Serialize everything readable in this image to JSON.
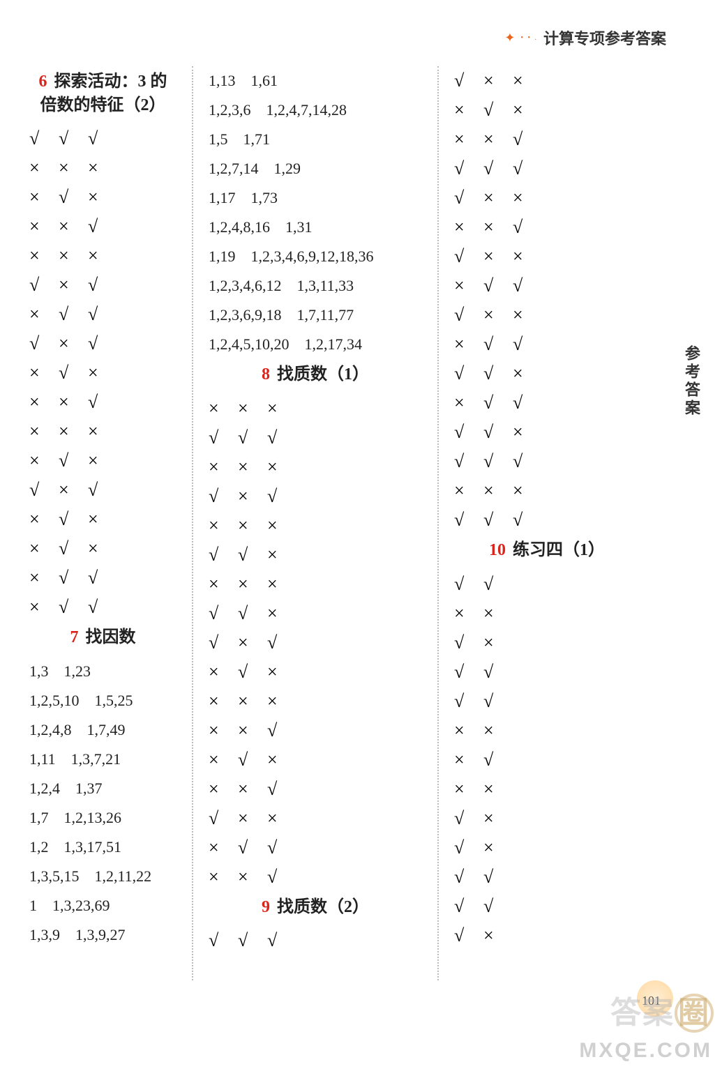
{
  "header": {
    "title": "计算专项参考答案"
  },
  "side_label": "参考答案",
  "page_number": "101",
  "watermark_cn": "答案",
  "watermark_circle": "圈",
  "watermark_en": "MXQE.COM",
  "check_char": "√",
  "cross_char": "×",
  "col1": {
    "s6": {
      "num": "6",
      "title_l1": "探索活动：3 的",
      "title_l2": "倍数的特征（2）"
    },
    "s6_marks": [
      [
        "c",
        "c",
        "c"
      ],
      [
        "x",
        "x",
        "x"
      ],
      [
        "x",
        "c",
        "x"
      ],
      [
        "x",
        "x",
        "c"
      ],
      [
        "x",
        "x",
        "x"
      ],
      [
        "c",
        "x",
        "c"
      ],
      [
        "x",
        "c",
        "c"
      ],
      [
        "c",
        "x",
        "c"
      ],
      [
        "x",
        "c",
        "x"
      ],
      [
        "x",
        "x",
        "c"
      ],
      [
        "x",
        "x",
        "x"
      ],
      [
        "x",
        "c",
        "x"
      ],
      [
        "c",
        "x",
        "c"
      ],
      [
        "x",
        "c",
        "x"
      ],
      [
        "x",
        "c",
        "x"
      ],
      [
        "x",
        "c",
        "c"
      ],
      [
        "x",
        "c",
        "c"
      ]
    ],
    "s7": {
      "num": "7",
      "title": "找因数"
    },
    "s7_rows": [
      "1,3　1,23",
      "1,2,5,10　1,5,25",
      "1,2,4,8　1,7,49",
      "1,11　1,3,7,21",
      "1,2,4　1,37",
      "1,7　1,2,13,26",
      "1,2　1,3,17,51",
      "1,3,5,15　1,2,11,22",
      "1　1,3,23,69",
      "1,3,9　1,3,9,27"
    ]
  },
  "col2": {
    "top_rows": [
      "1,13　1,61",
      "1,2,3,6　1,2,4,7,14,28",
      "1,5　1,71",
      "1,2,7,14　1,29",
      "1,17　1,73",
      "1,2,4,8,16　1,31",
      "1,19　1,2,3,4,6,9,12,18,36",
      "1,2,3,4,6,12　1,3,11,33",
      "1,2,3,6,9,18　1,7,11,77",
      "1,2,4,5,10,20　1,2,17,34"
    ],
    "s8": {
      "num": "8",
      "title": "找质数（1）"
    },
    "s8_marks": [
      [
        "x",
        "x",
        "x"
      ],
      [
        "c",
        "c",
        "c"
      ],
      [
        "x",
        "x",
        "x"
      ],
      [
        "c",
        "x",
        "c"
      ],
      [
        "x",
        "x",
        "x"
      ],
      [
        "c",
        "c",
        "x"
      ],
      [
        "x",
        "x",
        "x"
      ],
      [
        "c",
        "c",
        "x"
      ],
      [
        "c",
        "x",
        "c"
      ],
      [
        "x",
        "c",
        "x"
      ],
      [
        "x",
        "x",
        "x"
      ],
      [
        "x",
        "x",
        "c"
      ],
      [
        "x",
        "c",
        "x"
      ],
      [
        "x",
        "x",
        "c"
      ],
      [
        "c",
        "x",
        "x"
      ],
      [
        "x",
        "c",
        "c"
      ],
      [
        "x",
        "x",
        "c"
      ]
    ],
    "s9": {
      "num": "9",
      "title": "找质数（2）"
    },
    "s9_marks": [
      [
        "c",
        "c",
        "c"
      ]
    ]
  },
  "col3": {
    "top_marks": [
      [
        "c",
        "x",
        "x"
      ],
      [
        "x",
        "c",
        "x"
      ],
      [
        "x",
        "x",
        "c"
      ],
      [
        "c",
        "c",
        "c"
      ],
      [
        "c",
        "x",
        "x"
      ],
      [
        "x",
        "x",
        "c"
      ],
      [
        "c",
        "x",
        "x"
      ],
      [
        "x",
        "c",
        "c"
      ],
      [
        "c",
        "x",
        "x"
      ],
      [
        "x",
        "c",
        "c"
      ],
      [
        "c",
        "c",
        "x"
      ],
      [
        "x",
        "c",
        "c"
      ],
      [
        "c",
        "c",
        "x"
      ],
      [
        "c",
        "c",
        "c"
      ],
      [
        "x",
        "x",
        "x"
      ],
      [
        "c",
        "c",
        "c"
      ]
    ],
    "s10": {
      "num": "10",
      "title": "练习四（1）"
    },
    "s10_marks": [
      [
        "c",
        "c"
      ],
      [
        "x",
        "x"
      ],
      [
        "c",
        "x"
      ],
      [
        "c",
        "c"
      ],
      [
        "c",
        "c"
      ],
      [
        "x",
        "x"
      ],
      [
        "x",
        "c"
      ],
      [
        "x",
        "x"
      ],
      [
        "c",
        "x"
      ],
      [
        "c",
        "x"
      ],
      [
        "c",
        "c"
      ],
      [
        "c",
        "c"
      ],
      [
        "c",
        "x"
      ]
    ]
  }
}
